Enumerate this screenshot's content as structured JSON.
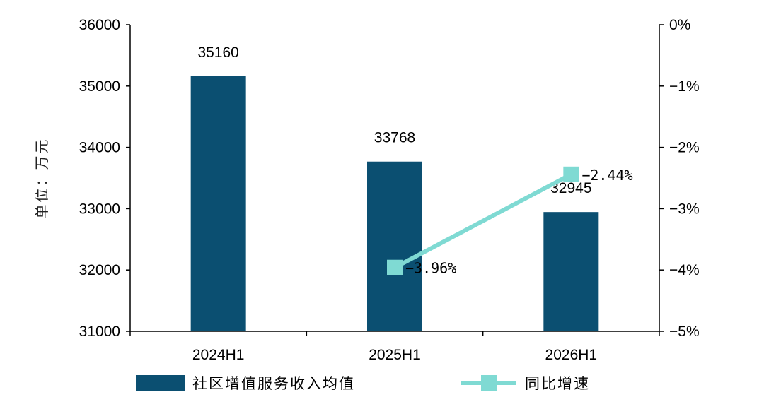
{
  "chart_data": {
    "type": "bar",
    "categories": [
      "2024H1",
      "2025H1",
      "2026H1"
    ],
    "ylabel": "单位：万元",
    "ylim": [
      31000,
      36000
    ],
    "y_ticks": [
      "36000",
      "35000",
      "34000",
      "33000",
      "32000",
      "31000"
    ],
    "y2lim": [
      -5,
      0
    ],
    "y2_ticks": [
      "0%",
      "−1%",
      "−2%",
      "−3%",
      "−4%",
      "−5%"
    ],
    "grid": false,
    "legend_position": "bottom",
    "series": [
      {
        "name": "社区增值服务收入均值",
        "type": "bar",
        "axis": "left",
        "values": [
          35160,
          33768,
          32945
        ],
        "labels": [
          "35160",
          "33768",
          "32945"
        ],
        "color": "#0b4f71"
      },
      {
        "name": "同比增速",
        "type": "line",
        "axis": "right",
        "values": [
          null,
          -3.96,
          -2.44
        ],
        "labels": [
          "",
          "−3.96%",
          "−2.44%"
        ],
        "color": "#7fdad3"
      }
    ]
  }
}
